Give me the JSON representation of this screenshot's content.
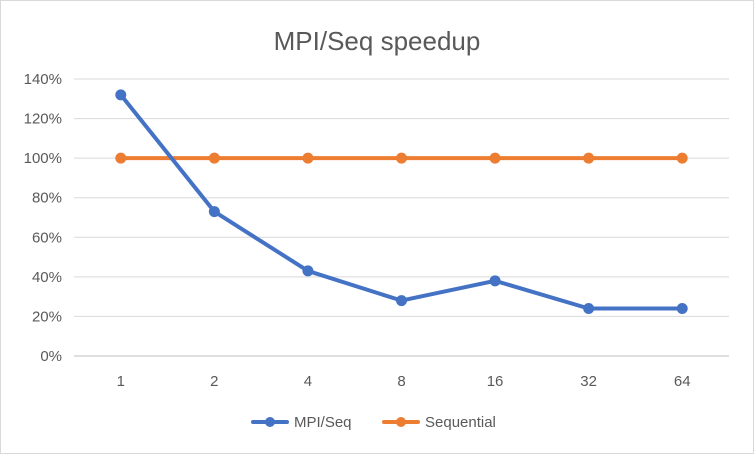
{
  "chart_data": {
    "type": "line",
    "title": "MPI/Seq speedup",
    "xlabel": "",
    "ylabel": "",
    "categories": [
      "1",
      "2",
      "4",
      "8",
      "16",
      "32",
      "64"
    ],
    "y_ticks": [
      "0%",
      "20%",
      "40%",
      "60%",
      "80%",
      "100%",
      "120%",
      "140%"
    ],
    "ylim": [
      0,
      140
    ],
    "y_unit": "%",
    "grid": true,
    "legend_position": "bottom",
    "series": [
      {
        "name": "MPI/Seq",
        "color": "#4472c4",
        "values": [
          132,
          73,
          43,
          28,
          38,
          24,
          24
        ]
      },
      {
        "name": "Sequential",
        "color": "#ed7d31",
        "values": [
          100,
          100,
          100,
          100,
          100,
          100,
          100
        ]
      }
    ]
  }
}
